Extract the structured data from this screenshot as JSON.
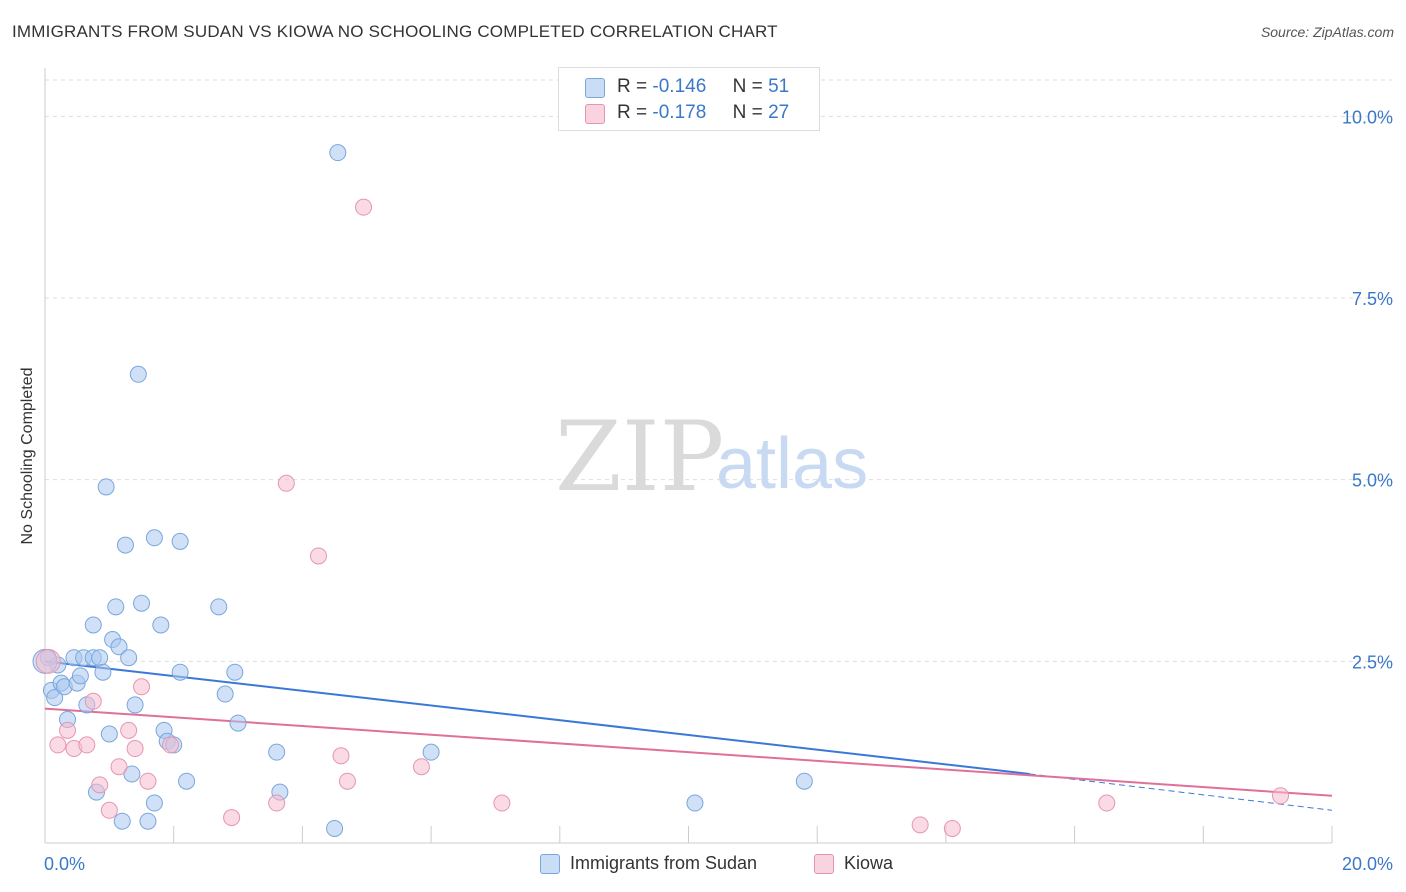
{
  "title": "IMMIGRANTS FROM SUDAN VS KIOWA NO SCHOOLING COMPLETED CORRELATION CHART",
  "source": "Source: ZipAtlas.com",
  "watermark": {
    "zip": "ZIP",
    "atlas": "atlas"
  },
  "legend": [
    {
      "name": "Immigrants from Sudan",
      "r_label": "R =",
      "r_value": "-0.146",
      "n_label": "N =",
      "n_value": "51",
      "color": "#a9c8f0",
      "stroke": "#7aa6dc"
    },
    {
      "name": "Kiowa",
      "r_label": "R =",
      "r_value": "-0.178",
      "n_label": "N =",
      "n_value": "27",
      "color": "#f5bdd0",
      "stroke": "#e695b0"
    }
  ],
  "chart_data": {
    "type": "scatter",
    "title": "IMMIGRANTS FROM SUDAN VS KIOWA NO SCHOOLING COMPLETED CORRELATION CHART",
    "xlabel": "",
    "ylabel": "No Schooling Completed",
    "xlim": [
      0,
      20
    ],
    "ylim": [
      0,
      10.5
    ],
    "x_tick_labels": [
      "0.0%",
      "20.0%"
    ],
    "y_ticks": [
      2.5,
      5.0,
      7.5,
      10.0
    ],
    "y_tick_labels": [
      "2.5%",
      "5.0%",
      "7.5%",
      "10.0%"
    ],
    "grid": true,
    "series": [
      {
        "name": "Immigrants from Sudan",
        "color": "#a9c8f0",
        "line_color": "#3a78d8",
        "trend": {
          "x": [
            0,
            15.3
          ],
          "y": [
            2.5,
            0.95
          ],
          "dashed_to": [
            20,
            0.45
          ]
        },
        "points": [
          [
            0.05,
            2.55
          ],
          [
            0.1,
            2.1
          ],
          [
            0.15,
            2.0
          ],
          [
            0.2,
            2.45
          ],
          [
            0.25,
            2.2
          ],
          [
            0.3,
            2.15
          ],
          [
            0.35,
            1.7
          ],
          [
            0.45,
            2.55
          ],
          [
            0.5,
            2.2
          ],
          [
            0.55,
            2.3
          ],
          [
            0.6,
            2.55
          ],
          [
            0.65,
            1.9
          ],
          [
            0.75,
            2.55
          ],
          [
            0.75,
            3.0
          ],
          [
            0.8,
            0.7
          ],
          [
            0.85,
            2.55
          ],
          [
            0.9,
            2.35
          ],
          [
            0.95,
            4.9
          ],
          [
            1.0,
            1.5
          ],
          [
            1.05,
            2.8
          ],
          [
            1.1,
            3.25
          ],
          [
            1.15,
            2.7
          ],
          [
            1.2,
            0.3
          ],
          [
            1.25,
            4.1
          ],
          [
            1.3,
            2.55
          ],
          [
            1.35,
            0.95
          ],
          [
            1.4,
            1.9
          ],
          [
            1.45,
            6.45
          ],
          [
            1.5,
            3.3
          ],
          [
            1.6,
            0.3
          ],
          [
            1.7,
            4.2
          ],
          [
            1.7,
            0.55
          ],
          [
            1.8,
            3.0
          ],
          [
            1.85,
            1.55
          ],
          [
            1.9,
            1.4
          ],
          [
            2.0,
            1.35
          ],
          [
            2.1,
            2.35
          ],
          [
            2.1,
            4.15
          ],
          [
            2.2,
            0.85
          ],
          [
            2.7,
            3.25
          ],
          [
            2.8,
            2.05
          ],
          [
            2.95,
            2.35
          ],
          [
            3.0,
            1.65
          ],
          [
            3.6,
            1.25
          ],
          [
            3.65,
            0.7
          ],
          [
            4.5,
            0.2
          ],
          [
            4.55,
            9.5
          ],
          [
            6.0,
            1.25
          ],
          [
            10.1,
            0.55
          ],
          [
            11.8,
            0.85
          ],
          [
            0.0,
            2.5
          ]
        ]
      },
      {
        "name": "Kiowa",
        "color": "#f5bdd0",
        "line_color": "#e0709a",
        "trend": {
          "x": [
            0,
            20
          ],
          "y": [
            1.85,
            0.65
          ]
        },
        "points": [
          [
            0.05,
            2.5
          ],
          [
            0.2,
            1.35
          ],
          [
            0.35,
            1.55
          ],
          [
            0.45,
            1.3
          ],
          [
            0.65,
            1.35
          ],
          [
            0.75,
            1.95
          ],
          [
            0.85,
            0.8
          ],
          [
            1.0,
            0.45
          ],
          [
            1.15,
            1.05
          ],
          [
            1.3,
            1.55
          ],
          [
            1.4,
            1.3
          ],
          [
            1.5,
            2.15
          ],
          [
            1.6,
            0.85
          ],
          [
            1.95,
            1.35
          ],
          [
            2.9,
            0.35
          ],
          [
            3.6,
            0.55
          ],
          [
            3.75,
            4.95
          ],
          [
            4.25,
            3.95
          ],
          [
            4.6,
            1.2
          ],
          [
            4.7,
            0.85
          ],
          [
            4.95,
            8.75
          ],
          [
            5.85,
            1.05
          ],
          [
            7.1,
            0.55
          ],
          [
            13.6,
            0.25
          ],
          [
            14.1,
            0.2
          ],
          [
            16.5,
            0.55
          ],
          [
            19.2,
            0.65
          ]
        ]
      }
    ]
  }
}
